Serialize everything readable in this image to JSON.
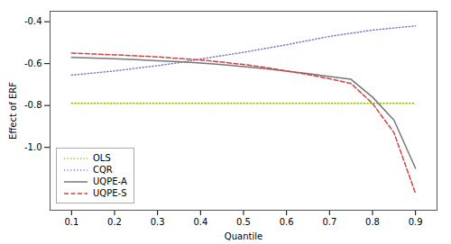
{
  "chart_data": {
    "type": "line",
    "xlabel": "Quantile",
    "ylabel": "Effect of ERF",
    "x": [
      0.1,
      0.15,
      0.2,
      0.25,
      0.3,
      0.35,
      0.4,
      0.45,
      0.5,
      0.55,
      0.6,
      0.65,
      0.7,
      0.75,
      0.8,
      0.85,
      0.9
    ],
    "series": [
      {
        "name": "OLS",
        "color": "#8fbc00",
        "line_style": "dotted",
        "values": [
          -0.79,
          -0.79,
          -0.79,
          -0.79,
          -0.79,
          -0.79,
          -0.79,
          -0.79,
          -0.79,
          -0.79,
          -0.79,
          -0.79,
          -0.79,
          -0.79,
          -0.79,
          -0.79,
          -0.79
        ]
      },
      {
        "name": "CQR",
        "color": "#7b7bcc",
        "line_style": "dotted",
        "values": [
          -0.655,
          -0.645,
          -0.635,
          -0.622,
          -0.61,
          -0.595,
          -0.578,
          -0.562,
          -0.546,
          -0.528,
          -0.51,
          -0.49,
          -0.47,
          -0.455,
          -0.44,
          -0.43,
          -0.42
        ]
      },
      {
        "name": "UQPE-A",
        "color": "#777777",
        "line_style": "solid",
        "values": [
          -0.57,
          -0.573,
          -0.577,
          -0.581,
          -0.586,
          -0.591,
          -0.597,
          -0.605,
          -0.614,
          -0.624,
          -0.636,
          -0.648,
          -0.662,
          -0.675,
          -0.76,
          -0.87,
          -1.1
        ]
      },
      {
        "name": "UQPE-S",
        "color": "#cc4444",
        "line_style": "dashed",
        "values": [
          -0.55,
          -0.554,
          -0.558,
          -0.563,
          -0.568,
          -0.575,
          -0.583,
          -0.593,
          -0.604,
          -0.618,
          -0.635,
          -0.652,
          -0.672,
          -0.695,
          -0.79,
          -0.93,
          -1.22
        ]
      }
    ],
    "xlim": [
      0.05,
      0.95
    ],
    "ylim": [
      -1.3,
      -0.35
    ],
    "xticks": [
      0.1,
      0.2,
      0.3,
      0.4,
      0.5,
      0.6,
      0.7,
      0.8,
      0.9
    ],
    "yticks": [
      -0.4,
      -0.6,
      -0.8,
      {
        "value": -1.0,
        "label": "-1.0"
      }
    ],
    "legend": "lower left",
    "grid": false
  }
}
